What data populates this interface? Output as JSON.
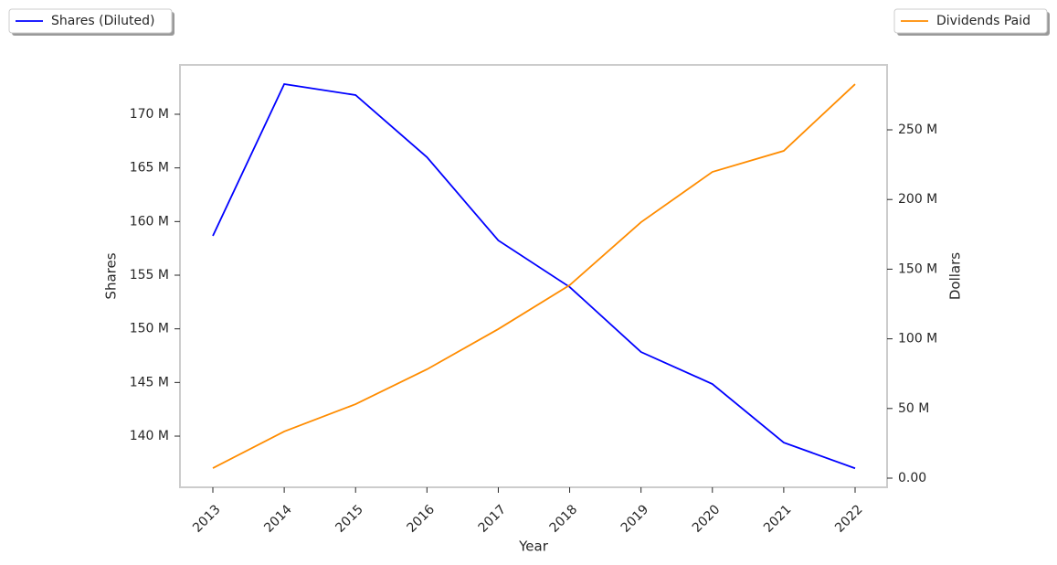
{
  "chart_data": {
    "type": "line",
    "xlabel": "Year",
    "ylabel": "Shares",
    "y2label": "Dollars",
    "categories": [
      "2013",
      "2014",
      "2015",
      "2016",
      "2017",
      "2018",
      "2019",
      "2020",
      "2021",
      "2022"
    ],
    "series": [
      {
        "name": "Shares (Diluted)",
        "color": "#0000ff",
        "axis": "y",
        "values": [
          158660000,
          172810000,
          171790000,
          166000000,
          158240000,
          153900000,
          147840000,
          144860000,
          139400000,
          137000000
        ]
      },
      {
        "name": "Dividends Paid",
        "color": "#ff8c00",
        "axis": "y2",
        "values": [
          7200000,
          33500000,
          53100000,
          78100000,
          107000000,
          138500000,
          183700000,
          219800000,
          234900000,
          282800000
        ]
      }
    ],
    "ylim": [
      135230000,
      174600000
    ],
    "yticks": [
      {
        "value": 140000000,
        "label": "140 M"
      },
      {
        "value": 145000000,
        "label": "145 M"
      },
      {
        "value": 150000000,
        "label": "150 M"
      },
      {
        "value": 155000000,
        "label": "155 M"
      },
      {
        "value": 160000000,
        "label": "160 M"
      },
      {
        "value": 165000000,
        "label": "165 M"
      },
      {
        "value": 170000000,
        "label": "170 M"
      }
    ],
    "y2lim": [
      -6560000,
      296600000
    ],
    "y2ticks": [
      {
        "value": 0,
        "label": "0.00"
      },
      {
        "value": 50000000,
        "label": "50 M"
      },
      {
        "value": 100000000,
        "label": "100 M"
      },
      {
        "value": 150000000,
        "label": "150 M"
      },
      {
        "value": 200000000,
        "label": "200 M"
      },
      {
        "value": 250000000,
        "label": "250 M"
      }
    ]
  }
}
